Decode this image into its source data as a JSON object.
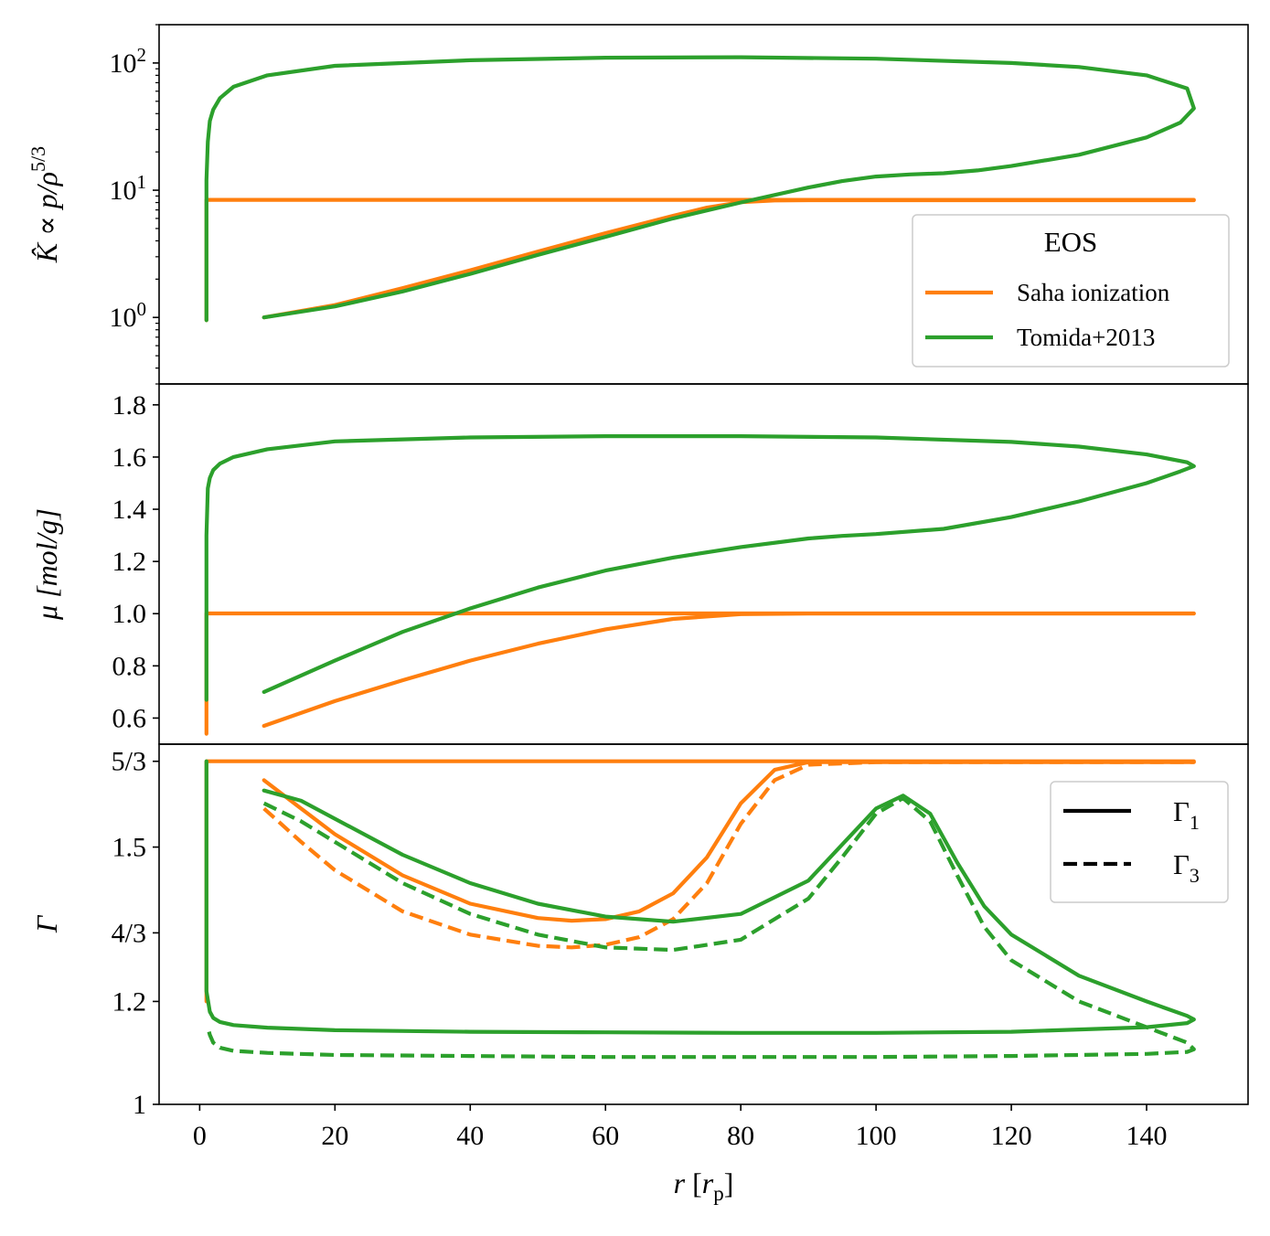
{
  "colors": {
    "saha": "#ff7f0e",
    "tomida": "#2ca02c",
    "axis": "#000000",
    "legend_border": "#cccccc"
  },
  "chart_data": {
    "type": "line",
    "layout": "three vertically stacked panels sharing the x axis",
    "xlabel": {
      "var": "r",
      "open": "[",
      "unit": "r",
      "unit_sub": "p",
      "close": "]"
    },
    "xlim": [
      -6,
      155
    ],
    "xticks": [
      0,
      20,
      40,
      60,
      80,
      100,
      120,
      140
    ],
    "xtick_labels": [
      "0",
      "20",
      "40",
      "60",
      "80",
      "100",
      "120",
      "140"
    ],
    "panels": [
      {
        "id": "K",
        "ylabel": "K̂ ∝ p/ρ",
        "ylabel_exp": "5/3",
        "yscale": "log",
        "ylim": [
          0.3,
          200
        ],
        "yticks": [
          1,
          10,
          100
        ],
        "ytick_labels": [
          {
            "base": "10",
            "exp": "0"
          },
          {
            "base": "10",
            "exp": "1"
          },
          {
            "base": "10",
            "exp": "2"
          }
        ],
        "legend": {
          "title": "EOS",
          "entries": [
            {
              "label": "Saha ionization",
              "series": "saha"
            },
            {
              "label": "Tomida+2013",
              "series": "tomida"
            }
          ]
        },
        "series": [
          {
            "name": "Saha ionization",
            "key": "saha",
            "dash": "solid",
            "x": [
              9.5,
              20,
              30,
              40,
              50,
              60,
              70,
              75,
              80,
              85,
              90,
              100,
              110,
              120,
              130,
              140,
              147,
              147,
              120,
              100,
              80,
              60,
              40,
              20,
              5,
              2,
              1.2,
              1.0,
              1.0,
              1.0
            ],
            "y": [
              1.0,
              1.25,
              1.7,
              2.35,
              3.3,
              4.6,
              6.3,
              7.3,
              8.05,
              8.3,
              8.35,
              8.35,
              8.35,
              8.35,
              8.35,
              8.35,
              8.35,
              8.4,
              8.4,
              8.4,
              8.4,
              8.4,
              8.4,
              8.4,
              8.4,
              8.4,
              8.4,
              8.4,
              6.0,
              0.95
            ]
          },
          {
            "name": "Tomida+2013",
            "key": "tomida",
            "dash": "solid",
            "x": [
              9.5,
              20,
              30,
              40,
              50,
              60,
              70,
              80,
              90,
              95,
              100,
              105,
              110,
              115,
              120,
              130,
              140,
              145,
              147,
              146,
              140,
              130,
              120,
              100,
              80,
              60,
              40,
              20,
              10,
              5,
              3,
              2,
              1.5,
              1.2,
              1.0,
              1.0,
              1.0
            ],
            "y": [
              1.0,
              1.22,
              1.6,
              2.2,
              3.1,
              4.3,
              6.0,
              8.0,
              10.5,
              11.8,
              12.8,
              13.3,
              13.6,
              14.3,
              15.5,
              19.0,
              26.0,
              34.0,
              44.0,
              63.0,
              80.0,
              93.0,
              100.0,
              108.0,
              111.0,
              110.0,
              105.0,
              95.0,
              80.0,
              65.0,
              53.0,
              43.0,
              35.0,
              24.0,
              12.0,
              3.0,
              0.95
            ]
          }
        ]
      },
      {
        "id": "mu",
        "ylabel": "μ [mol/g]",
        "yscale": "linear",
        "ylim": [
          0.5,
          1.88
        ],
        "yticks": [
          0.6,
          0.8,
          1.0,
          1.2,
          1.4,
          1.6,
          1.8
        ],
        "ytick_labels": [
          "0.6",
          "0.8",
          "1.0",
          "1.2",
          "1.4",
          "1.6",
          "1.8"
        ],
        "series": [
          {
            "name": "Saha ionization",
            "key": "saha",
            "dash": "solid",
            "x": [
              9.5,
              20,
              30,
              40,
              50,
              60,
              70,
              80,
              90,
              100,
              147,
              147,
              100,
              50,
              10,
              2,
              1.2,
              1.0,
              1.0,
              1.0
            ],
            "y": [
              0.57,
              0.665,
              0.745,
              0.82,
              0.885,
              0.94,
              0.98,
              0.998,
              1.0,
              1.0,
              1.0,
              1.001,
              1.001,
              1.001,
              1.001,
              1.001,
              1.001,
              1.0,
              0.8,
              0.54
            ]
          },
          {
            "name": "Tomida+2013",
            "key": "tomida",
            "dash": "solid",
            "x": [
              9.5,
              20,
              30,
              40,
              50,
              60,
              70,
              80,
              90,
              95,
              100,
              110,
              120,
              130,
              140,
              145,
              147,
              146,
              140,
              130,
              120,
              100,
              80,
              60,
              40,
              20,
              10,
              5,
              3,
              2,
              1.5,
              1.2,
              1.0,
              1.0,
              1.0
            ],
            "y": [
              0.7,
              0.82,
              0.93,
              1.02,
              1.1,
              1.165,
              1.215,
              1.255,
              1.288,
              1.298,
              1.305,
              1.325,
              1.37,
              1.43,
              1.5,
              1.545,
              1.565,
              1.58,
              1.61,
              1.64,
              1.658,
              1.675,
              1.68,
              1.68,
              1.675,
              1.66,
              1.63,
              1.6,
              1.575,
              1.55,
              1.52,
              1.48,
              1.3,
              1.0,
              0.67
            ]
          }
        ]
      },
      {
        "id": "Gamma",
        "ylabel": "Γ",
        "yscale": "linear",
        "ylim": [
          1.0,
          1.7
        ],
        "yticks": [
          1.0,
          1.2,
          1.3333,
          1.5,
          1.6667
        ],
        "ytick_labels": [
          "1",
          "1.2",
          "4/3",
          "1.5",
          "5/3"
        ],
        "legend": {
          "entries": [
            {
              "label": "Γ",
              "sub": "1",
              "dash": "solid"
            },
            {
              "label": "Γ",
              "sub": "3",
              "dash": "dashed"
            }
          ]
        },
        "series": [
          {
            "name": "Saha ionization Γ1",
            "key": "saha",
            "dash": "solid",
            "x": [
              9.5,
              15,
              20,
              30,
              40,
              50,
              55,
              60,
              65,
              70,
              75,
              80,
              85,
              90,
              100,
              147,
              147,
              100,
              50,
              10,
              2,
              1.2,
              1.0,
              1.0,
              1.0
            ],
            "y": [
              1.63,
              1.575,
              1.525,
              1.445,
              1.39,
              1.362,
              1.357,
              1.36,
              1.375,
              1.41,
              1.48,
              1.585,
              1.65,
              1.665,
              1.665,
              1.665,
              1.6667,
              1.6667,
              1.6667,
              1.6667,
              1.6667,
              1.6667,
              1.6667,
              1.5,
              1.2
            ]
          },
          {
            "name": "Saha ionization Γ3",
            "key": "saha",
            "dash": "dashed",
            "x": [
              9.5,
              15,
              20,
              30,
              40,
              50,
              55,
              60,
              65,
              70,
              75,
              80,
              85,
              90,
              100,
              147
            ],
            "y": [
              1.575,
              1.51,
              1.455,
              1.375,
              1.33,
              1.308,
              1.305,
              1.31,
              1.325,
              1.36,
              1.43,
              1.545,
              1.63,
              1.66,
              1.665,
              1.665
            ]
          },
          {
            "name": "Tomida+2013 Γ1",
            "key": "tomida",
            "dash": "solid",
            "x": [
              9.5,
              15,
              20,
              30,
              40,
              50,
              60,
              70,
              80,
              90,
              95,
              100,
              104,
              108,
              112,
              116,
              120,
              130,
              140,
              146,
              147,
              146,
              140,
              120,
              100,
              80,
              60,
              40,
              20,
              10,
              5,
              3,
              2,
              1.5,
              1.0,
              1.0,
              1.0
            ],
            "y": [
              1.61,
              1.59,
              1.555,
              1.485,
              1.43,
              1.39,
              1.365,
              1.355,
              1.37,
              1.435,
              1.505,
              1.575,
              1.6,
              1.565,
              1.47,
              1.385,
              1.33,
              1.25,
              1.2,
              1.172,
              1.165,
              1.158,
              1.15,
              1.141,
              1.139,
              1.139,
              1.14,
              1.141,
              1.144,
              1.149,
              1.154,
              1.16,
              1.168,
              1.18,
              1.22,
              1.5,
              1.6667
            ]
          },
          {
            "name": "Tomida+2013 Γ3",
            "key": "tomida",
            "dash": "dashed",
            "x": [
              9.5,
              15,
              20,
              30,
              40,
              50,
              60,
              70,
              80,
              90,
              95,
              100,
              104,
              108,
              112,
              116,
              120,
              130,
              140,
              146,
              147,
              146,
              140,
              120,
              100,
              80,
              60,
              40,
              20,
              10,
              5,
              3,
              2,
              1.5,
              1.2
            ],
            "y": [
              1.585,
              1.55,
              1.51,
              1.43,
              1.37,
              1.33,
              1.305,
              1.3,
              1.32,
              1.4,
              1.48,
              1.565,
              1.595,
              1.55,
              1.445,
              1.345,
              1.28,
              1.2,
              1.15,
              1.12,
              1.107,
              1.102,
              1.098,
              1.094,
              1.092,
              1.092,
              1.092,
              1.094,
              1.096,
              1.1,
              1.104,
              1.11,
              1.12,
              1.135,
              1.15
            ]
          }
        ]
      }
    ]
  }
}
